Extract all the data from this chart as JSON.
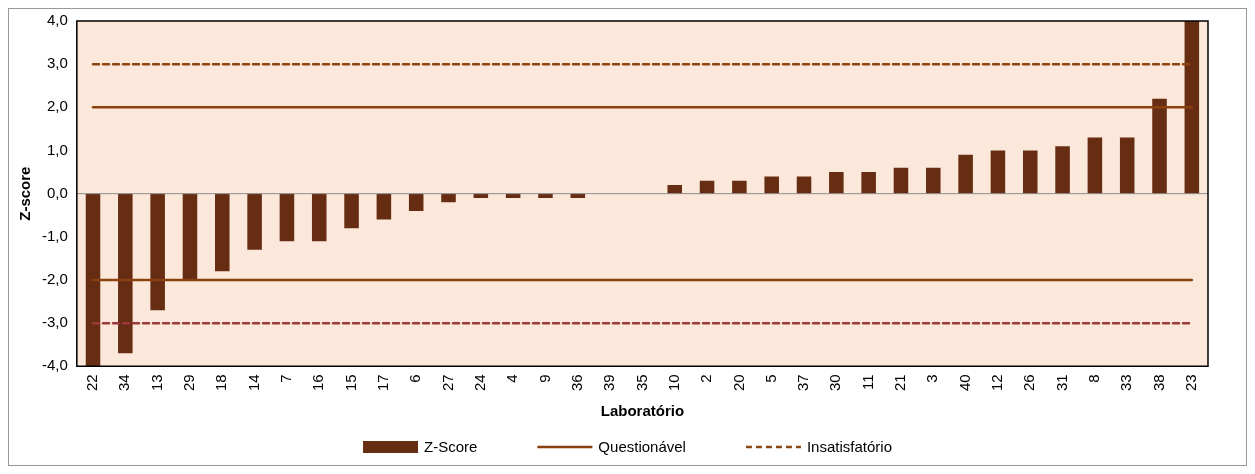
{
  "chart_data": {
    "type": "bar",
    "xlabel": "Laboratório",
    "ylabel": "Z-score",
    "categories": [
      "22",
      "34",
      "13",
      "29",
      "18",
      "14",
      "7",
      "16",
      "15",
      "17",
      "6",
      "27",
      "24",
      "4",
      "9",
      "36",
      "39",
      "35",
      "10",
      "2",
      "20",
      "5",
      "37",
      "30",
      "11",
      "21",
      "3",
      "40",
      "12",
      "26",
      "31",
      "8",
      "33",
      "38",
      "23"
    ],
    "series": [
      {
        "name": "Z-Score",
        "color": "#662d12",
        "values": [
          -4.0,
          -3.7,
          -2.7,
          -2.0,
          -1.8,
          -1.3,
          -1.1,
          -1.1,
          -0.8,
          -0.6,
          -0.4,
          -0.2,
          -0.1,
          -0.1,
          -0.1,
          -0.1,
          0,
          0,
          0.2,
          0.3,
          0.3,
          0.4,
          0.4,
          0.5,
          0.5,
          0.6,
          0.6,
          0.9,
          1.0,
          1.0,
          1.1,
          1.3,
          1.3,
          2.2,
          4.0
        ]
      }
    ],
    "ylim": [
      -4,
      4
    ],
    "yticks": [
      {
        "value": -4,
        "label": "-4,0"
      },
      {
        "value": -3,
        "label": "-3,0"
      },
      {
        "value": -2,
        "label": "-2,0"
      },
      {
        "value": -1,
        "label": "-1,0"
      },
      {
        "value": 0,
        "label": "0,0"
      },
      {
        "value": 1,
        "label": "1,0"
      },
      {
        "value": 2,
        "label": "2,0"
      },
      {
        "value": 3,
        "label": "3,0"
      },
      {
        "value": 4,
        "label": "4,0"
      }
    ],
    "ref_lines": [
      {
        "axis": "y",
        "value": 2,
        "label": "Questionável",
        "color": "#8b4010",
        "line_style": "solid"
      },
      {
        "axis": "y",
        "value": -2,
        "label": null,
        "color": "#8b4010",
        "line_style": "solid"
      },
      {
        "axis": "y",
        "value": 3,
        "label": "Insatisfatório",
        "color": "#8b4513",
        "line_style": "dashed"
      },
      {
        "axis": "y",
        "value": -3,
        "label": null,
        "color": "#9b3a3a",
        "line_style": "dashed"
      }
    ],
    "grid": false,
    "legend": "bottom"
  }
}
